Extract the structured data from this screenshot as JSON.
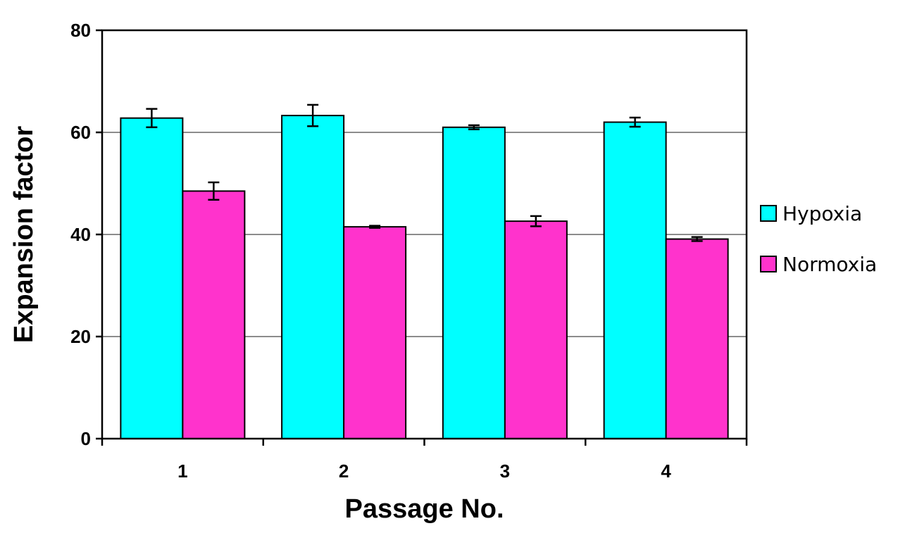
{
  "chart_data": {
    "type": "bar",
    "categories": [
      "1",
      "2",
      "3",
      "4"
    ],
    "series": [
      {
        "name": "Hypoxia",
        "color": "#00FFFF",
        "values": [
          62.8,
          63.3,
          61.0,
          62.0
        ],
        "errors": [
          1.8,
          2.1,
          0.4,
          0.9
        ]
      },
      {
        "name": "Normoxia",
        "color": "#FF33CC",
        "values": [
          48.5,
          41.5,
          42.6,
          39.1
        ],
        "errors": [
          1.7,
          0.2,
          1.0,
          0.4
        ]
      }
    ],
    "xlabel": "Passage No.",
    "ylabel": "Expansion factor",
    "ylim": [
      0,
      80
    ],
    "yticks": [
      "0",
      "20",
      "40",
      "60",
      "80"
    ],
    "grid": true,
    "legend_position": "right"
  }
}
